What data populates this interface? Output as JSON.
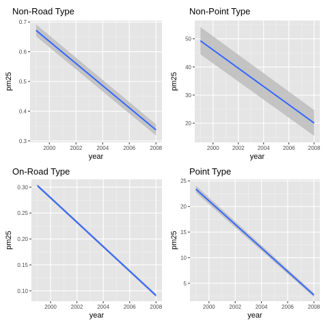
{
  "colors": {
    "panel_bg": "#e5e5e5",
    "grid_major": "#ffffff",
    "grid_minor": "#f0f0f0",
    "line": "#3366ff",
    "ribbon": "#bdbdbd",
    "text": "#000000",
    "tick_text": "#4d4d4d"
  },
  "chart_data": [
    {
      "type": "line",
      "title": "Non-Road Type",
      "xlabel": "year",
      "ylabel": "pm25",
      "xlim": [
        1998.55,
        2008.45
      ],
      "ylim": [
        0.295,
        0.705
      ],
      "xticks": [
        2000,
        2002,
        2004,
        2006,
        2008
      ],
      "yticks": [
        0.3,
        0.4,
        0.5,
        0.6,
        0.7
      ],
      "ytick_labels": [
        "0.3",
        "0.4",
        "0.5",
        "0.6",
        "0.7"
      ],
      "grid": true,
      "series": [
        {
          "x": [
            1999,
            2008
          ],
          "y": [
            0.672,
            0.337
          ],
          "ci_lower": [
            0.652,
            0.318
          ],
          "ci_upper": [
            0.692,
            0.356
          ]
        }
      ]
    },
    {
      "type": "line",
      "title": "Non-Point Type",
      "xlabel": "year",
      "ylabel": "pm25",
      "xlim": [
        1998.55,
        2008.45
      ],
      "ylim": [
        13.2,
        56.5
      ],
      "xticks": [
        2000,
        2002,
        2004,
        2006,
        2008
      ],
      "yticks": [
        20,
        30,
        40,
        50
      ],
      "ytick_labels": [
        "20",
        "30",
        "40",
        "50"
      ],
      "grid": true,
      "series": [
        {
          "x": [
            1999,
            2008
          ],
          "y": [
            49.3,
            20.1
          ],
          "ci_lower": [
            44.5,
            15.5
          ],
          "ci_upper": [
            54.2,
            24.7
          ]
        }
      ]
    },
    {
      "type": "line",
      "title": "On-Road Type",
      "xlabel": "year",
      "ylabel": "pm25",
      "xlim": [
        1998.55,
        2008.45
      ],
      "ylim": [
        0.08,
        0.315
      ],
      "xticks": [
        2000,
        2002,
        2004,
        2006,
        2008
      ],
      "yticks": [
        0.1,
        0.15,
        0.2,
        0.25,
        0.3
      ],
      "ytick_labels": [
        "0.10",
        "0.15",
        "0.20",
        "0.25",
        "0.30"
      ],
      "grid": true,
      "series": [
        {
          "x": [
            1999,
            2008
          ],
          "y": [
            0.303,
            0.091
          ],
          "ci_lower": [
            0.3,
            0.088
          ],
          "ci_upper": [
            0.306,
            0.094
          ]
        }
      ]
    },
    {
      "type": "line",
      "title": "Point Type",
      "xlabel": "year",
      "ylabel": "pm25",
      "xlim": [
        1998.55,
        2008.45
      ],
      "ylim": [
        1.5,
        25.3
      ],
      "xticks": [
        2000,
        2002,
        2004,
        2006,
        2008
      ],
      "yticks": [
        5,
        10,
        15,
        20,
        25
      ],
      "ytick_labels": [
        "5",
        "10",
        "15",
        "20",
        "25"
      ],
      "grid": true,
      "series": [
        {
          "x": [
            1999,
            2008
          ],
          "y": [
            23.4,
            2.7
          ],
          "ci_lower": [
            22.7,
            2.3
          ],
          "ci_upper": [
            24.1,
            3.1
          ]
        }
      ]
    }
  ]
}
